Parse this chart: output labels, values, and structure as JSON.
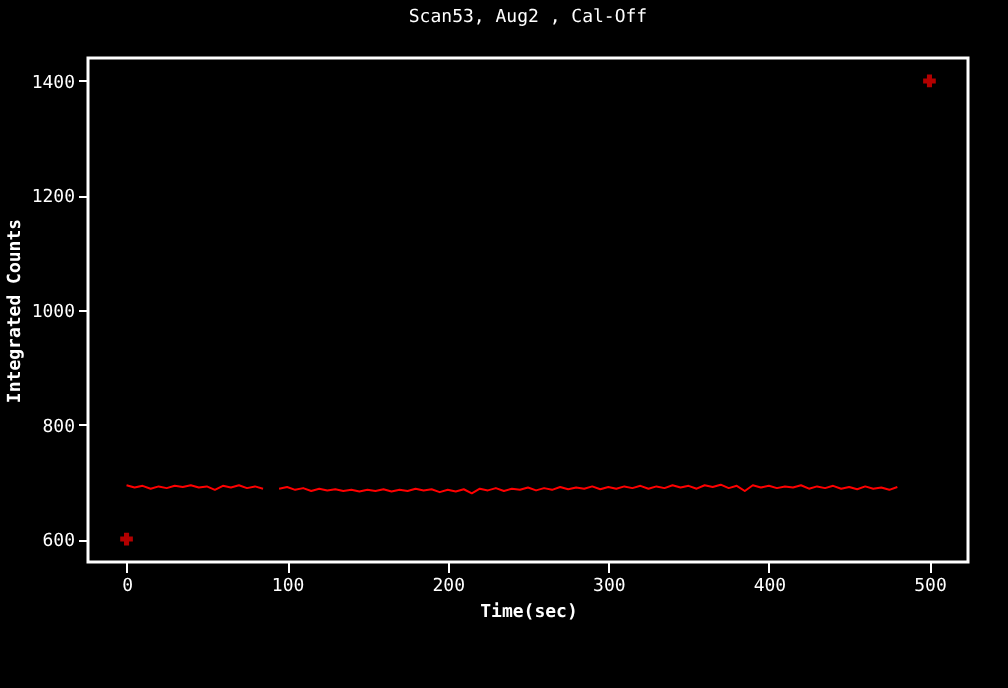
{
  "chart_data": {
    "type": "line",
    "title": "Scan53, Aug2 , Cal-Off",
    "xlabel": "Time(sec)",
    "ylabel": "Integrated Counts",
    "xlim": [
      -24,
      524
    ],
    "ylim": [
      560,
      1440
    ],
    "xticks": [
      0,
      100,
      200,
      300,
      400,
      500
    ],
    "yticks": [
      600,
      800,
      1000,
      1200,
      1400
    ],
    "grid": false,
    "legend": false,
    "series": [
      {
        "color": "#ff0000",
        "x": [
          0,
          5,
          10,
          15,
          20,
          25,
          30,
          35,
          40,
          45,
          50,
          55,
          60,
          65,
          70,
          75,
          80,
          85,
          90,
          95,
          100,
          105,
          110,
          115,
          120,
          125,
          130,
          135,
          140,
          145,
          150,
          155,
          160,
          165,
          170,
          175,
          180,
          185,
          190,
          195,
          200,
          205,
          210,
          215,
          220,
          225,
          230,
          235,
          240,
          245,
          250,
          255,
          260,
          265,
          270,
          275,
          280,
          285,
          290,
          295,
          300,
          305,
          310,
          315,
          320,
          325,
          330,
          335,
          340,
          345,
          350,
          355,
          360,
          365,
          370,
          375,
          380,
          385,
          390,
          395,
          400,
          405,
          410,
          415,
          420,
          425,
          430,
          435,
          440,
          445,
          450,
          455,
          460,
          465,
          470,
          475,
          480
        ],
        "values": [
          694,
          690,
          693,
          688,
          692,
          689,
          693,
          691,
          694,
          690,
          692,
          686,
          693,
          690,
          694,
          689,
          692,
          688,
          null,
          688,
          691,
          686,
          689,
          684,
          688,
          685,
          687,
          684,
          686,
          683,
          686,
          684,
          687,
          683,
          686,
          684,
          688,
          685,
          687,
          682,
          686,
          683,
          687,
          680,
          688,
          685,
          689,
          684,
          688,
          686,
          690,
          685,
          689,
          686,
          691,
          687,
          690,
          688,
          692,
          687,
          691,
          688,
          692,
          689,
          693,
          688,
          692,
          689,
          694,
          690,
          693,
          688,
          694,
          691,
          695,
          689,
          693,
          684,
          694,
          690,
          693,
          689,
          692,
          690,
          694,
          688,
          692,
          689,
          693,
          688,
          691,
          687,
          692,
          688,
          690,
          686,
          691
        ]
      },
      {
        "type": "scatter",
        "color": "#ff0000",
        "marker": "cross",
        "x": [
          0,
          500
        ],
        "values": [
          600,
          1400
        ]
      }
    ]
  }
}
